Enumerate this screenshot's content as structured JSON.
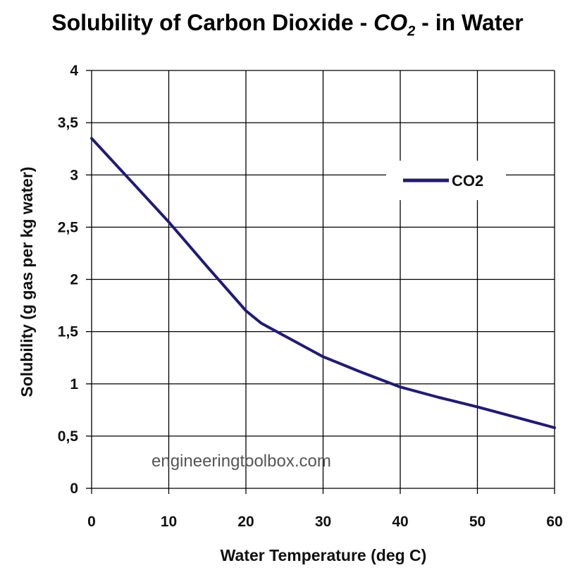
{
  "title": {
    "before": "Solubility of Carbon Dioxide - ",
    "chem_main": "CO",
    "chem_sub": "2",
    "after": " - in Water"
  },
  "watermark": "engineeringtoolbox.com",
  "chart_data": {
    "type": "line",
    "title": "Solubility of Carbon Dioxide - CO2 - in Water",
    "xlabel": "Water Temperature (deg C)",
    "ylabel": "Solubility (g gas per kg water)",
    "xlim": [
      0,
      60
    ],
    "ylim": [
      0,
      4
    ],
    "x_ticks": [
      0,
      10,
      20,
      30,
      40,
      50,
      60
    ],
    "x_tick_labels": [
      "0",
      "10",
      "20",
      "30",
      "40",
      "50",
      "60"
    ],
    "y_ticks": [
      0,
      0.5,
      1,
      1.5,
      2,
      2.5,
      3,
      3.5,
      4
    ],
    "y_tick_labels": [
      "0",
      "0,5",
      "1",
      "1,5",
      "2",
      "2,5",
      "3",
      "3,5",
      "4"
    ],
    "grid": true,
    "legend_position": "top-right",
    "colors": {
      "line": "#1f1a7a",
      "grid": "#000000"
    },
    "series": [
      {
        "name": "CO2",
        "x": [
          0,
          5,
          10,
          15,
          20,
          22,
          25,
          30,
          35,
          40,
          45,
          50,
          55,
          60
        ],
        "y": [
          3.35,
          2.95,
          2.55,
          2.12,
          1.7,
          1.58,
          1.46,
          1.26,
          1.11,
          0.97,
          0.87,
          0.78,
          0.68,
          0.58
        ]
      }
    ]
  }
}
